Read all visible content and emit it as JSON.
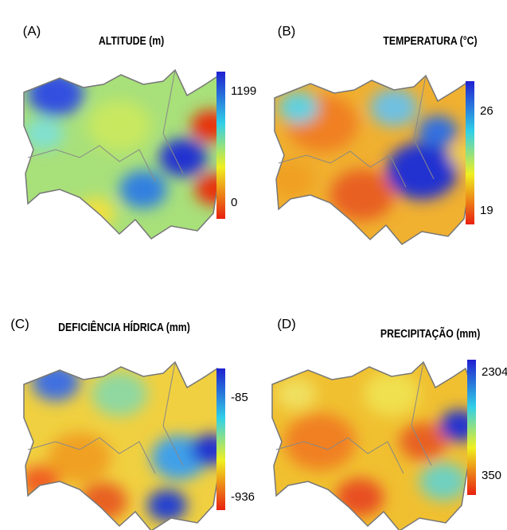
{
  "panels": [
    {
      "label": "(A)",
      "title": "ALTITUDE (m)",
      "colorbar_ticks": [
        1199,
        0
      ]
    },
    {
      "label": "(B)",
      "title": "TEMPERATURA (°C)",
      "colorbar_ticks": [
        26,
        19
      ]
    },
    {
      "label": "(C)",
      "title": "DEFICIÊNCIA HÍDRICA (mm)",
      "colorbar_ticks": [
        -85,
        -936
      ]
    },
    {
      "label": "(D)",
      "title": "PRECIPITAÇÃO (mm)",
      "colorbar_ticks": [
        2304,
        350
      ]
    }
  ]
}
